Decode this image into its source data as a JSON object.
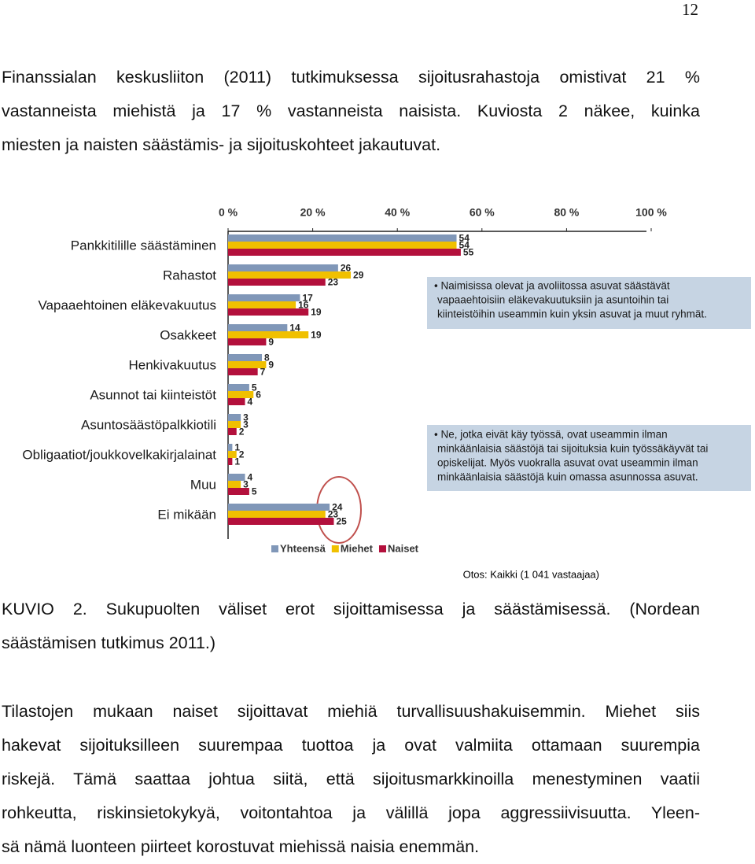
{
  "page_number": "12",
  "intro": {
    "lines": [
      "Finanssialan keskusliiton (2011) tutkimuksessa sijoitusrahastoja omistivat 21 %",
      "vastanneista miehistä ja 17 % vastanneista naisista. Kuviosta 2 näkee, kuinka",
      "miesten ja naisten säästämis- ja sijoituskohteet jakautuvat."
    ]
  },
  "chart_data": {
    "type": "bar",
    "categories": [
      "Pankkitilille säästäminen",
      "Rahastot",
      "Vapaaehtoinen eläkevakuutus",
      "Osakkeet",
      "Henkivakuutus",
      "Asunnot tai kiinteistöt",
      "Asuntosäästöpalkkiotili",
      "Obligaatiot/joukkovelkakirjalainat",
      "Muu",
      "Ei mikään"
    ],
    "series": [
      {
        "name": "Yhteensä",
        "color": "#8097b8",
        "values": [
          54,
          26,
          17,
          14,
          8,
          5,
          3,
          1,
          4,
          24
        ]
      },
      {
        "name": "Miehet",
        "color": "#f0c000",
        "values": [
          54,
          29,
          16,
          19,
          9,
          6,
          3,
          2,
          3,
          23
        ]
      },
      {
        "name": "Naiset",
        "color": "#b3103c",
        "values": [
          55,
          23,
          19,
          9,
          7,
          4,
          2,
          1,
          5,
          25
        ]
      }
    ],
    "xlim": [
      0,
      100
    ],
    "xticks": [
      {
        "value": 0,
        "label": "0 %"
      },
      {
        "value": 20,
        "label": "20 %"
      },
      {
        "value": 40,
        "label": "40 %"
      },
      {
        "value": 60,
        "label": "60 %"
      },
      {
        "value": 80,
        "label": "80 %"
      },
      {
        "value": 100,
        "label": "100 %"
      }
    ],
    "grid": false,
    "notes": [
      [
        "• Naimisissa olevat ja avoliitossa asuvat säästävät",
        "vapaaehtoisiin eläkevakuutuksiin ja asuntoihin tai",
        "kiinteistöihin useammin kuin yksin asuvat ja muut ryhmät."
      ],
      [
        "• Ne, jotka eivät käy työssä, ovat useammin ilman",
        "minkäänlaisia säästöjä tai sijoituksia kuin työssäkäyvät tai",
        "opiskelijat.  Myös vuokralla asuvat ovat useammin ilman",
        "minkäänlaisia säästöjä kuin omassa asunnossa asuvat."
      ]
    ],
    "source": "Otos: Kaikki (1 041 vastaajaa)"
  },
  "caption": {
    "lines": [
      "KUVIO 2. Sukupuolten väliset erot sijoittamisessa ja säästämisessä. (Nordean",
      "säästämisen tutkimus 2011.)"
    ]
  },
  "body": {
    "lines": [
      "Tilastojen mukaan naiset sijoittavat miehiä turvallisuushakuisemmin. Miehet siis",
      "hakevat sijoituksilleen suurempaa tuottoa ja ovat valmiita ottamaan suurempia",
      "riskejä. Tämä saattaa johtua siitä, että sijoitusmarkkinoilla menestyminen vaatii",
      "rohkeutta, riskinsietokykyä, voitontahtoa ja välillä jopa aggressiivisuutta. Yleen-",
      "sä nämä luonteen piirteet korostuvat miehissä naisia enemmän."
    ]
  }
}
